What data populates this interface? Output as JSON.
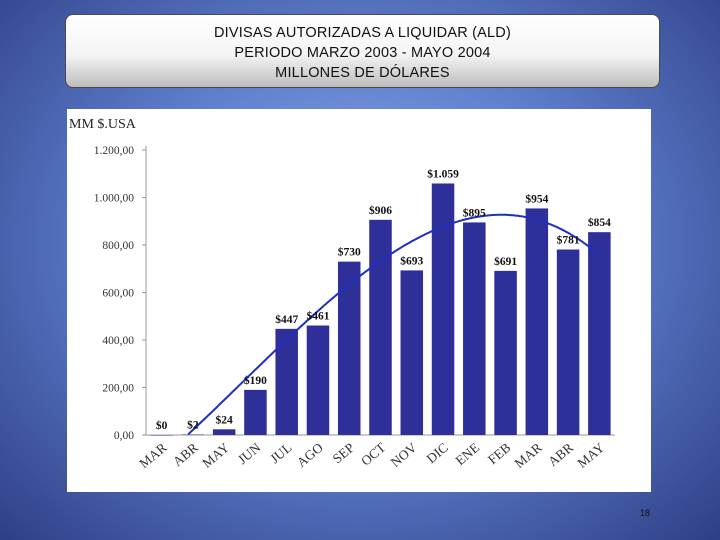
{
  "slide": {
    "title_lines": [
      "DIVISAS AUTORIZADAS A LIQUIDAR (ALD)",
      "PERIODO  MARZO 2003 -  MAYO 2004",
      "MILLONES DE DÓLARES"
    ],
    "page_number": "18"
  },
  "chart_data": {
    "type": "bar",
    "unit_label": "MM  $.USA",
    "categories": [
      "MAR",
      "ABR",
      "MAY",
      "JUN",
      "JUL",
      "AGO",
      "SEP",
      "OCT",
      "NOV",
      "DIC",
      "ENE",
      "FEB",
      "MAR",
      "ABR",
      "MAY"
    ],
    "values": [
      0,
      2,
      24,
      190,
      447,
      461,
      730,
      906,
      693,
      1059,
      895,
      691,
      954,
      781,
      854
    ],
    "data_labels": [
      "$0",
      "$2",
      "$24",
      "$190",
      "$447",
      "$461",
      "$730",
      "$906",
      "$693",
      "$1.059",
      "$895",
      "$691",
      "$954",
      "$781",
      "$854"
    ],
    "ylim": [
      0,
      1200
    ],
    "yticks": [
      0,
      200,
      400,
      600,
      800,
      1000,
      1200
    ],
    "ytick_labels": [
      "0,00",
      "200,00",
      "400,00",
      "600,00",
      "800,00",
      "1.000,00",
      "1.200,00"
    ],
    "grid": false,
    "bar_color": "#2f2f9a",
    "trendline": {
      "type": "polynomial",
      "color": "#1f2fc0"
    }
  }
}
